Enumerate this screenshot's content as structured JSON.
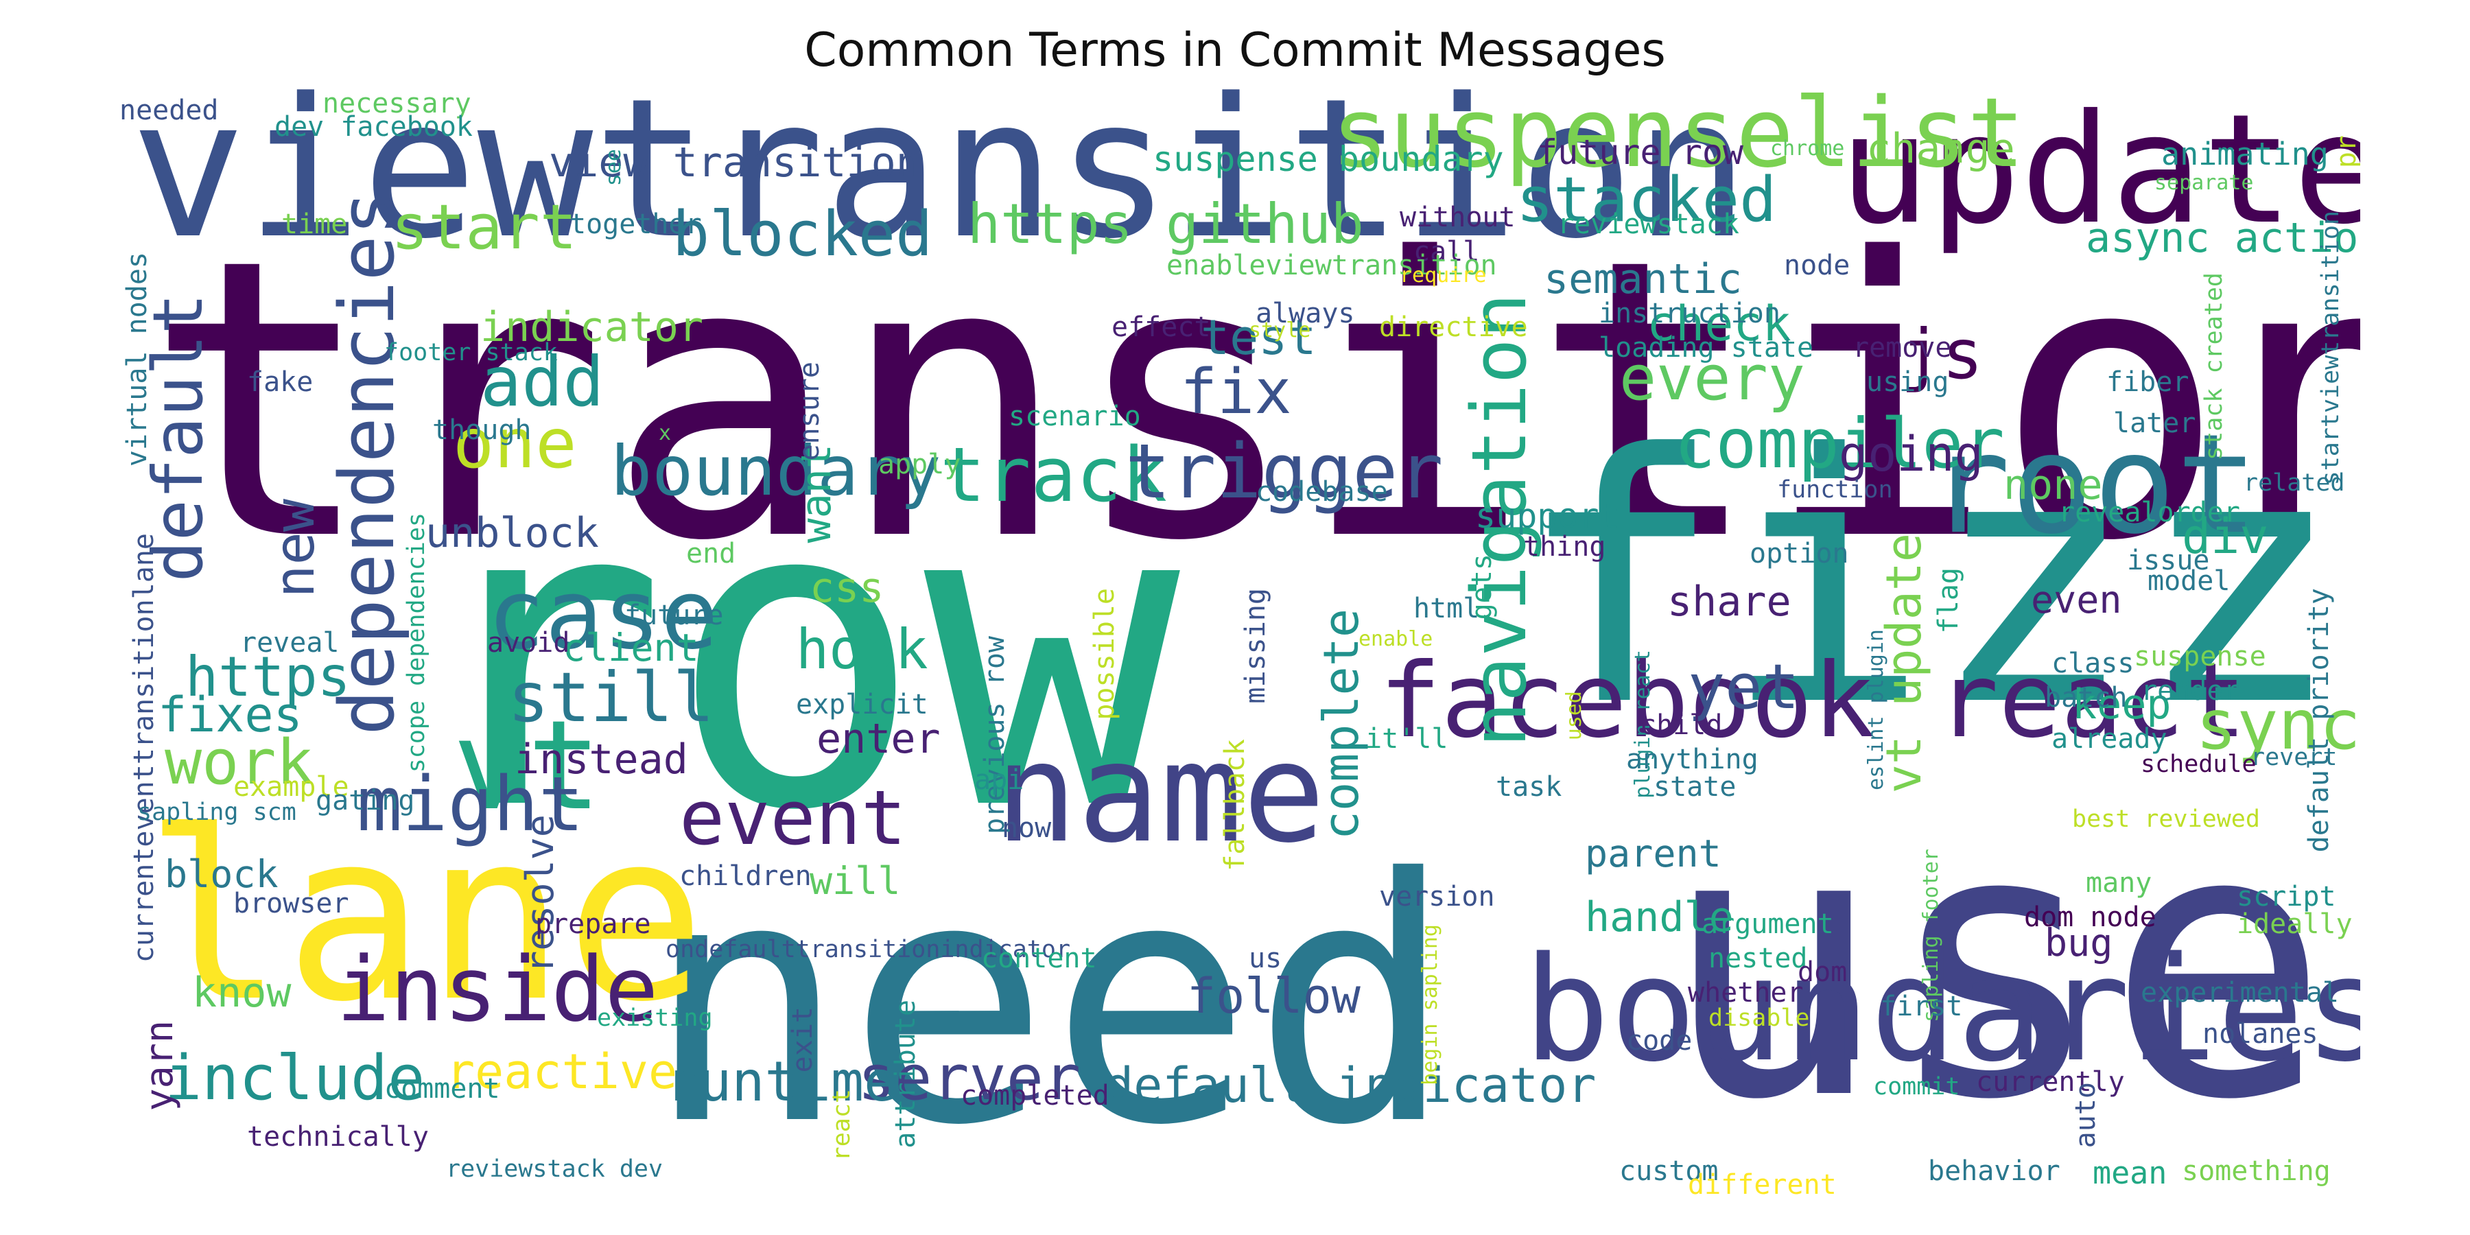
{
  "title": "Common Terms in Commit Messages",
  "palette": "viridis",
  "words": [
    {
      "text": "transition",
      "color": "#440154"
    },
    {
      "text": "row",
      "color": "#22a884"
    },
    {
      "text": "need",
      "color": "#2a788e"
    },
    {
      "text": "use",
      "color": "#414487"
    },
    {
      "text": "fizz",
      "color": "#21918c"
    },
    {
      "text": "lane",
      "color": "#fde725"
    },
    {
      "text": "viewtransition",
      "color": "#3b528b"
    },
    {
      "text": "update",
      "color": "#440154"
    },
    {
      "text": "boundaries",
      "color": "#414487"
    },
    {
      "text": "root",
      "color": "#2a788e"
    },
    {
      "text": "name",
      "color": "#414487"
    },
    {
      "text": "facebook react",
      "color": "#482173"
    },
    {
      "text": "suspenselist",
      "color": "#7ad151"
    },
    {
      "text": "vt",
      "color": "#22a884"
    },
    {
      "text": "case",
      "color": "#2a788e"
    },
    {
      "text": "inside",
      "color": "#482173"
    },
    {
      "text": "navigation",
      "color": "#22a884"
    },
    {
      "text": "dependencies",
      "color": "#3b528b"
    },
    {
      "text": "default",
      "color": "#3b528b"
    },
    {
      "text": "track",
      "color": "#22a884"
    },
    {
      "text": "trigger",
      "color": "#3b528b"
    },
    {
      "text": "boundary",
      "color": "#2a788e"
    },
    {
      "text": "compiler",
      "color": "#22a884"
    },
    {
      "text": "event",
      "color": "#482173"
    },
    {
      "text": "might",
      "color": "#3b528b"
    },
    {
      "text": "work",
      "color": "#7ad151"
    },
    {
      "text": "still",
      "color": "#2a788e"
    },
    {
      "text": "include",
      "color": "#21918c"
    },
    {
      "text": "server",
      "color": "#414487"
    },
    {
      "text": "runtime",
      "color": "#2a788e"
    },
    {
      "text": "sync",
      "color": "#7ad151"
    },
    {
      "text": "blocked",
      "color": "#2a788e"
    },
    {
      "text": "https github",
      "color": "#5ec962"
    },
    {
      "text": "stacked",
      "color": "#21918c"
    },
    {
      "text": "start",
      "color": "#7ad151"
    },
    {
      "text": "one",
      "color": "#bddf26"
    },
    {
      "text": "add",
      "color": "#21918c"
    },
    {
      "text": "hook",
      "color": "#22a884"
    },
    {
      "text": "yet",
      "color": "#3b528b"
    },
    {
      "text": "every",
      "color": "#5ec962"
    },
    {
      "text": "js",
      "color": "#440154"
    },
    {
      "text": "fix",
      "color": "#3b528b"
    },
    {
      "text": "complete",
      "color": "#21918c"
    },
    {
      "text": "vt update",
      "color": "#7ad151"
    },
    {
      "text": "new",
      "color": "#3b528b"
    },
    {
      "text": "https",
      "color": "#21918c"
    },
    {
      "text": "default indicator",
      "color": "#2a788e"
    },
    {
      "text": "follow",
      "color": "#3b528b"
    },
    {
      "text": "reactive",
      "color": "#fde725"
    },
    {
      "text": "view transition",
      "color": "#3b528b"
    },
    {
      "text": "async action",
      "color": "#22a884"
    },
    {
      "text": "semantic",
      "color": "#2a788e"
    },
    {
      "text": "check",
      "color": "#22a884"
    },
    {
      "text": "going",
      "color": "#482173"
    },
    {
      "text": "div",
      "color": "#22a884"
    },
    {
      "text": "none",
      "color": "#5ec962"
    },
    {
      "text": "keep",
      "color": "#22a884"
    },
    {
      "text": "test",
      "color": "#2a788e"
    },
    {
      "text": "fixes",
      "color": "#21918c"
    },
    {
      "text": "instead",
      "color": "#482173"
    },
    {
      "text": "enter",
      "color": "#482173"
    },
    {
      "text": "want",
      "color": "#22a884"
    },
    {
      "text": "support",
      "color": "#21918c"
    },
    {
      "text": "share",
      "color": "#482173"
    },
    {
      "text": "unblock",
      "color": "#3b528b"
    },
    {
      "text": "indicator",
      "color": "#7ad151"
    },
    {
      "text": "change",
      "color": "#7ad151"
    },
    {
      "text": "suspense boundary",
      "color": "#22a884"
    },
    {
      "text": "future row",
      "color": "#482173"
    },
    {
      "text": "animating",
      "color": "#21918c"
    },
    {
      "text": "css",
      "color": "#7ad151"
    },
    {
      "text": "client",
      "color": "#22a884"
    },
    {
      "text": "know",
      "color": "#5ec962"
    },
    {
      "text": "handle",
      "color": "#22a884"
    },
    {
      "text": "block",
      "color": "#2a788e"
    },
    {
      "text": "will",
      "color": "#5ec962"
    },
    {
      "text": "parent",
      "color": "#2a788e"
    },
    {
      "text": "resolve",
      "color": "#3b528b"
    },
    {
      "text": "even",
      "color": "#482173"
    },
    {
      "text": "bug",
      "color": "#482173"
    },
    {
      "text": "yarn",
      "color": "#482173"
    },
    {
      "text": "necessary",
      "color": "#5ec962"
    },
    {
      "text": "needed",
      "color": "#3b528b"
    },
    {
      "text": "dev facebook",
      "color": "#21918c"
    },
    {
      "text": "time",
      "color": "#7ad151"
    },
    {
      "text": "together",
      "color": "#2a788e"
    },
    {
      "text": "see",
      "color": "#21918c"
    },
    {
      "text": "without",
      "color": "#482173"
    },
    {
      "text": "call",
      "color": "#482173"
    },
    {
      "text": "reviewstack",
      "color": "#22a884"
    },
    {
      "text": "enableviewtransition",
      "color": "#5ec962"
    },
    {
      "text": "require",
      "color": "#fde725"
    },
    {
      "text": "node",
      "color": "#3b528b"
    },
    {
      "text": "chrome",
      "color": "#5ec962"
    },
    {
      "text": "separate",
      "color": "#5ec962"
    },
    {
      "text": "pr",
      "color": "#bddf26"
    },
    {
      "text": "virtual nodes",
      "color": "#2a788e"
    },
    {
      "text": "fake",
      "color": "#3b528b"
    },
    {
      "text": "footer stack",
      "color": "#21918c"
    },
    {
      "text": "though",
      "color": "#2a788e"
    },
    {
      "text": "x",
      "color": "#5ec962"
    },
    {
      "text": "ensure",
      "color": "#3b528b"
    },
    {
      "text": "effect",
      "color": "#482173"
    },
    {
      "text": "always",
      "color": "#3b528b"
    },
    {
      "text": "style",
      "color": "#bddf26"
    },
    {
      "text": "directive",
      "color": "#bddf26"
    },
    {
      "text": "instruction",
      "color": "#2a788e"
    },
    {
      "text": "loading state",
      "color": "#21918c"
    },
    {
      "text": "remove",
      "color": "#482173"
    },
    {
      "text": "using",
      "color": "#2a788e"
    },
    {
      "text": "fiber",
      "color": "#2a788e"
    },
    {
      "text": "later",
      "color": "#2a788e"
    },
    {
      "text": "stack created",
      "color": "#5ec962"
    },
    {
      "text": "startviewtransition",
      "color": "#2a788e"
    },
    {
      "text": "scenario",
      "color": "#22a884"
    },
    {
      "text": "apply",
      "color": "#5ec962"
    },
    {
      "text": "codebase",
      "color": "#2a788e"
    },
    {
      "text": "function",
      "color": "#3b528b"
    },
    {
      "text": "related",
      "color": "#2a788e"
    },
    {
      "text": "currenteventtransitionlane",
      "color": "#3b528b"
    },
    {
      "text": "scope dependencies",
      "color": "#22a884"
    },
    {
      "text": "end",
      "color": "#5ec962"
    },
    {
      "text": "gets",
      "color": "#22a884"
    },
    {
      "text": "thing",
      "color": "#482173"
    },
    {
      "text": "option",
      "color": "#2a788e"
    },
    {
      "text": "issue",
      "color": "#2a788e"
    },
    {
      "text": "model",
      "color": "#2a788e"
    },
    {
      "text": "revealorder",
      "color": "#22a884"
    },
    {
      "text": "future",
      "color": "#2a788e"
    },
    {
      "text": "previous row",
      "color": "#2a788e"
    },
    {
      "text": "possible",
      "color": "#bddf26"
    },
    {
      "text": "missing",
      "color": "#3b528b"
    },
    {
      "text": "html",
      "color": "#2a788e"
    },
    {
      "text": "flag",
      "color": "#22a884"
    },
    {
      "text": "enable",
      "color": "#bddf26"
    },
    {
      "text": "plugin react",
      "color": "#21918c"
    },
    {
      "text": "eslint plugin",
      "color": "#2a788e"
    },
    {
      "text": "class",
      "color": "#2a788e"
    },
    {
      "text": "suspense",
      "color": "#7ad151"
    },
    {
      "text": "render",
      "color": "#21918c"
    },
    {
      "text": "reveal",
      "color": "#2a788e"
    },
    {
      "text": "avoid",
      "color": "#482173"
    },
    {
      "text": "explicit",
      "color": "#2a788e"
    },
    {
      "text": "used",
      "color": "#bddf26"
    },
    {
      "text": "child",
      "color": "#482173"
    },
    {
      "text": "anything",
      "color": "#2a788e"
    },
    {
      "text": "already",
      "color": "#21918c"
    },
    {
      "text": "batch",
      "color": "#2a788e"
    },
    {
      "text": "revert",
      "color": "#2a788e"
    },
    {
      "text": "schedule",
      "color": "#440154"
    },
    {
      "text": "default priority",
      "color": "#2a788e"
    },
    {
      "text": "example",
      "color": "#bddf26"
    },
    {
      "text": "gating",
      "color": "#2a788e"
    },
    {
      "text": "sapling scm",
      "color": "#2a788e"
    },
    {
      "text": "api",
      "color": "#21918c"
    },
    {
      "text": "fallback",
      "color": "#bddf26"
    },
    {
      "text": "it'll",
      "color": "#22a884"
    },
    {
      "text": "task",
      "color": "#2a788e"
    },
    {
      "text": "state",
      "color": "#2a788e"
    },
    {
      "text": "best reviewed",
      "color": "#bddf26"
    },
    {
      "text": "now",
      "color": "#3b528b"
    },
    {
      "text": "children",
      "color": "#3b528b"
    },
    {
      "text": "browser",
      "color": "#3b528b"
    },
    {
      "text": "prepare",
      "color": "#482173"
    },
    {
      "text": "version",
      "color": "#3b528b"
    },
    {
      "text": "begin sapling",
      "color": "#bddf26"
    },
    {
      "text": "sapling footer",
      "color": "#5ec962"
    },
    {
      "text": "many",
      "color": "#5ec962"
    },
    {
      "text": "script",
      "color": "#21918c"
    },
    {
      "text": "ideally",
      "color": "#7ad151"
    },
    {
      "text": "ondefaulttransitionindicator",
      "color": "#3b528b"
    },
    {
      "text": "content",
      "color": "#22a884"
    },
    {
      "text": "us",
      "color": "#3b528b"
    },
    {
      "text": "argument",
      "color": "#22a884"
    },
    {
      "text": "nested",
      "color": "#22a884"
    },
    {
      "text": "dom",
      "color": "#482173"
    },
    {
      "text": "dom node",
      "color": "#440154"
    },
    {
      "text": "experimental",
      "color": "#2a788e"
    },
    {
      "text": "nolanes",
      "color": "#3b528b"
    },
    {
      "text": "existing",
      "color": "#22a884"
    },
    {
      "text": "exit",
      "color": "#3b528b"
    },
    {
      "text": "attribute",
      "color": "#21918c"
    },
    {
      "text": "whether",
      "color": "#482173"
    },
    {
      "text": "disable",
      "color": "#bddf26"
    },
    {
      "text": "first",
      "color": "#2a788e"
    },
    {
      "text": "code",
      "color": "#3b528b"
    },
    {
      "text": "comment",
      "color": "#21918c"
    },
    {
      "text": "technically",
      "color": "#482173"
    },
    {
      "text": "completed",
      "color": "#482173"
    },
    {
      "text": "react",
      "color": "#bddf26"
    },
    {
      "text": "commit",
      "color": "#22a884"
    },
    {
      "text": "currently",
      "color": "#482173"
    },
    {
      "text": "auto",
      "color": "#3b528b"
    },
    {
      "text": "reviewstack dev",
      "color": "#2a788e"
    },
    {
      "text": "custom",
      "color": "#2a788e"
    },
    {
      "text": "different",
      "color": "#fde725"
    },
    {
      "text": "behavior",
      "color": "#2a788e"
    },
    {
      "text": "mean",
      "color": "#22a884"
    },
    {
      "text": "something",
      "color": "#7ad151"
    }
  ]
}
